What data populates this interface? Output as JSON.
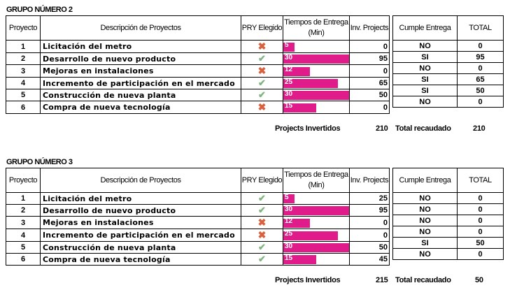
{
  "headers": {
    "proyecto": "Proyecto",
    "descripcion": "Descripción de Proyectos",
    "pry_elegido": "PRY Elegido",
    "tiempos": "Tiempos de Entrega (Min)",
    "inv": "Inv. Projects",
    "cumple": "Cumple Entrega",
    "total": "TOTAL"
  },
  "summary_labels": {
    "projects_invertidos": "Projects Invertidos",
    "total_recaudado": "Total recaudado"
  },
  "icons": {
    "check": "check-icon",
    "cross": "cross-icon"
  },
  "colors": {
    "bar": "#e01c8a",
    "check": "#7fb37f",
    "cross": "#d9603c"
  },
  "bar_max_minutes": 30,
  "groups": [
    {
      "title": "GRUPO NÚMERO 2",
      "rows": [
        {
          "id": "1",
          "desc": "Licitación del metro",
          "elegido": false,
          "tiempo": "5",
          "inv": "0",
          "cumple": "NO",
          "total": "0"
        },
        {
          "id": "2",
          "desc": "Desarrollo de nuevo producto",
          "elegido": true,
          "tiempo": "30",
          "inv": "95",
          "cumple": "SI",
          "total": "95"
        },
        {
          "id": "3",
          "desc": "Mejoras en instalaciones",
          "elegido": false,
          "tiempo": "12",
          "inv": "0",
          "cumple": "NO",
          "total": "0"
        },
        {
          "id": "4",
          "desc": "Incremento de participación en el mercado",
          "elegido": true,
          "tiempo": "25",
          "inv": "65",
          "cumple": "SI",
          "total": "65"
        },
        {
          "id": "5",
          "desc": "Construcción de nueva planta",
          "elegido": true,
          "tiempo": "30",
          "inv": "50",
          "cumple": "SI",
          "total": "50"
        },
        {
          "id": "6",
          "desc": "Compra de nueva tecnología",
          "elegido": false,
          "tiempo": "15",
          "inv": "0",
          "cumple": "NO",
          "total": "0"
        }
      ],
      "projects_invertidos": "210",
      "total_recaudado": "210"
    },
    {
      "title": "GRUPO NÚMERO 3",
      "rows": [
        {
          "id": "1",
          "desc": "Licitación del metro",
          "elegido": true,
          "tiempo": "5",
          "inv": "25",
          "cumple": "NO",
          "total": "0"
        },
        {
          "id": "2",
          "desc": "Desarrollo de nuevo producto",
          "elegido": true,
          "tiempo": "30",
          "inv": "95",
          "cumple": "NO",
          "total": "0"
        },
        {
          "id": "3",
          "desc": "Mejoras en instalaciones",
          "elegido": false,
          "tiempo": "12",
          "inv": "0",
          "cumple": "NO",
          "total": "0"
        },
        {
          "id": "4",
          "desc": "Incremento de participación en el mercado",
          "elegido": false,
          "tiempo": "25",
          "inv": "0",
          "cumple": "NO",
          "total": "0"
        },
        {
          "id": "5",
          "desc": "Construcción de nueva planta",
          "elegido": true,
          "tiempo": "30",
          "inv": "50",
          "cumple": "SI",
          "total": "50"
        },
        {
          "id": "6",
          "desc": "Compra de nueva tecnología",
          "elegido": true,
          "tiempo": "15",
          "inv": "45",
          "cumple": "NO",
          "total": "0"
        }
      ],
      "projects_invertidos": "215",
      "total_recaudado": "50"
    }
  ]
}
